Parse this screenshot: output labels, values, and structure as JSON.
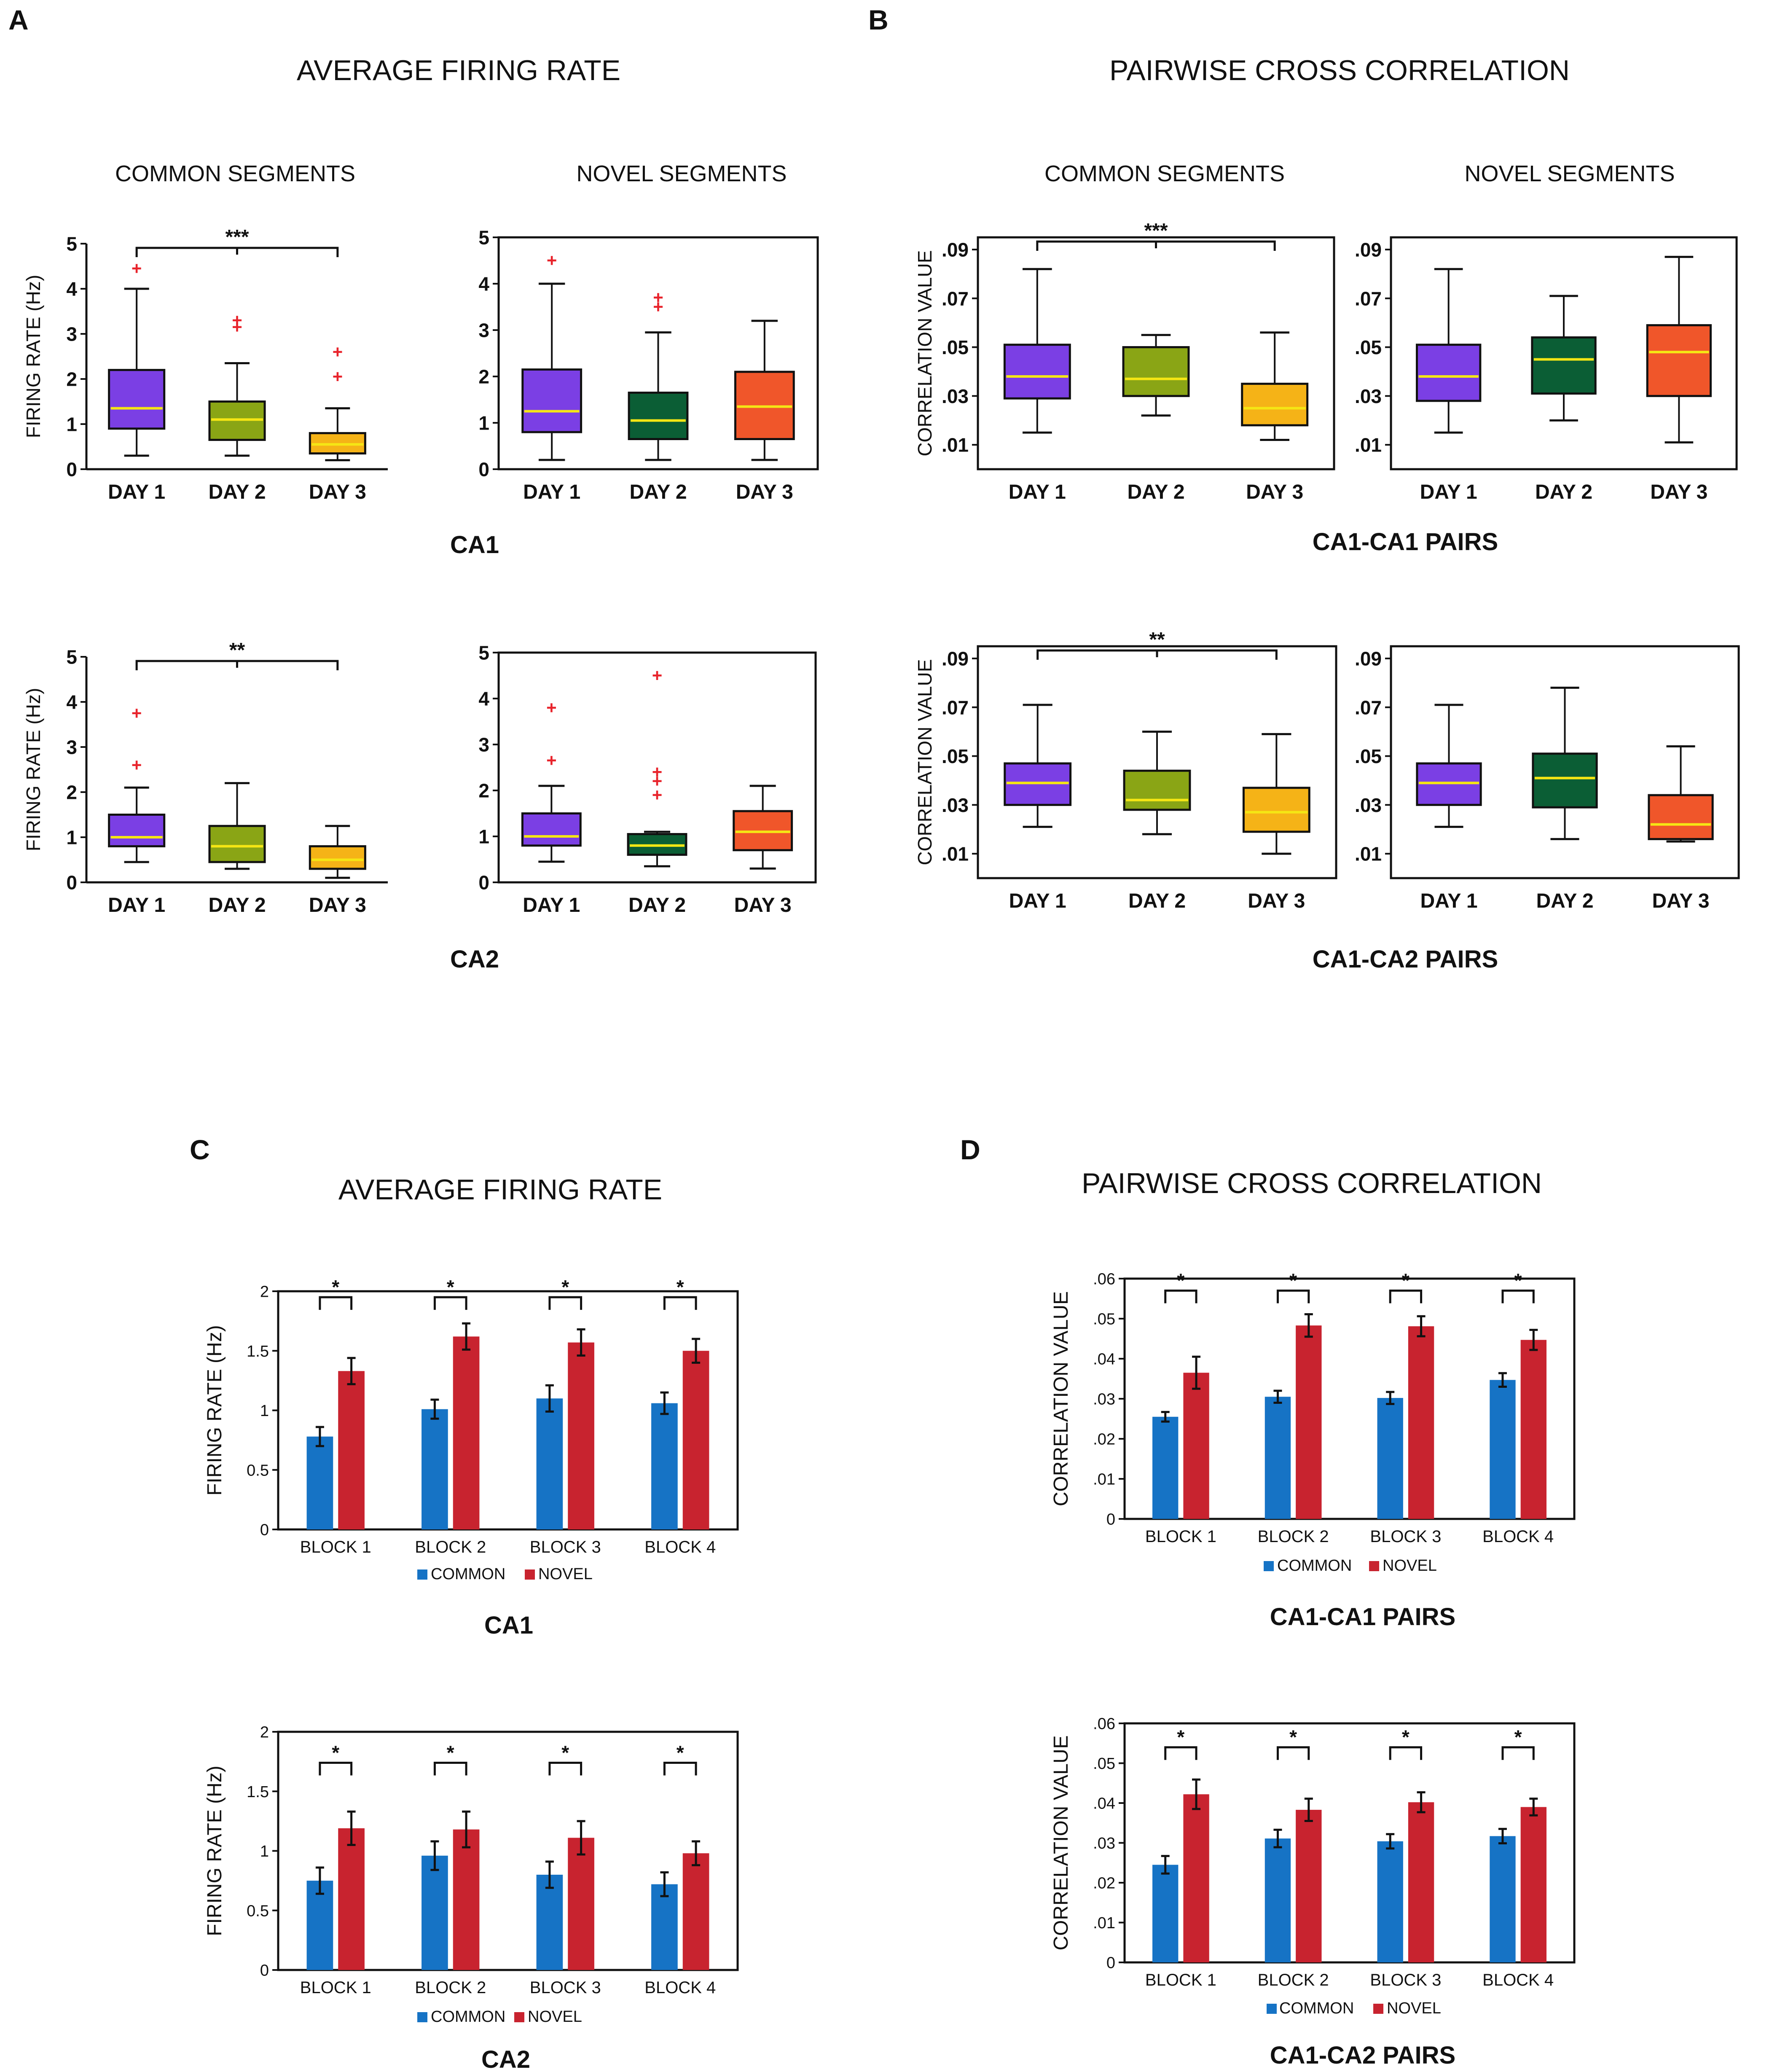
{
  "panels": {
    "A": {
      "letter": "A",
      "title": "AVERAGE FIRING RATE"
    },
    "B": {
      "letter": "B",
      "title": "PAIRWISE CROSS CORRELATION"
    },
    "C": {
      "letter": "C",
      "title": "AVERAGE FIRING RATE"
    },
    "D": {
      "letter": "D",
      "title": "PAIRWISE CROSS CORRELATION"
    }
  },
  "subheads": {
    "common": "COMMON SEGMENTS",
    "novel": "NOVEL SEGMENTS"
  },
  "region_labels": {
    "ca1": "CA1",
    "ca2": "CA2",
    "ca1_ca1": "CA1-CA1 PAIRS",
    "ca1_ca2": "CA1-CA2 PAIRS"
  },
  "legend": {
    "common": "COMMON",
    "novel": "NOVEL"
  },
  "colors": {
    "purple": "#7b3fe4",
    "olive": "#8aa515",
    "gold": "#f5b317",
    "green": "#0b5e35",
    "orange": "#f0562a",
    "median": "#f5e614",
    "outlier": "#e8232b",
    "common_bar": "#1673c5",
    "novel_bar": "#c8232f"
  },
  "chart_data": [
    {
      "id": "A-ca1-common",
      "type": "box",
      "ylabel": "FIRING RATE (Hz)",
      "ylim": [
        0,
        5
      ],
      "yticks": [
        0,
        1,
        2,
        3,
        4,
        5
      ],
      "tick_labels": [
        "0",
        "1",
        "2",
        "3",
        "4",
        "5"
      ],
      "categories": [
        "DAY 1",
        "DAY 2",
        "DAY 3"
      ],
      "boxes": [
        {
          "min": 0.3,
          "q1": 0.9,
          "median": 1.35,
          "q3": 2.2,
          "max": 4.0,
          "outliers": [
            4.45
          ],
          "color": "purple"
        },
        {
          "min": 0.3,
          "q1": 0.65,
          "median": 1.1,
          "q3": 1.5,
          "max": 2.35,
          "outliers": [
            3.15,
            3.3
          ],
          "color": "olive"
        },
        {
          "min": 0.2,
          "q1": 0.35,
          "median": 0.55,
          "q3": 0.8,
          "max": 1.35,
          "outliers": [
            2.05,
            2.6
          ],
          "color": "gold"
        }
      ],
      "significance": {
        "from": 0,
        "to": 2,
        "label": "***"
      }
    },
    {
      "id": "A-ca1-novel",
      "type": "box",
      "ylabel": "",
      "ylim": [
        0,
        5
      ],
      "yticks": [
        0,
        1,
        2,
        3,
        4,
        5
      ],
      "tick_labels": [
        "0",
        "1",
        "2",
        "3",
        "4",
        "5"
      ],
      "categories": [
        "DAY 1",
        "DAY 2",
        "DAY 3"
      ],
      "boxes": [
        {
          "min": 0.2,
          "q1": 0.8,
          "median": 1.25,
          "q3": 2.15,
          "max": 4.0,
          "outliers": [
            4.5
          ],
          "color": "purple"
        },
        {
          "min": 0.2,
          "q1": 0.65,
          "median": 1.05,
          "q3": 1.65,
          "max": 2.95,
          "outliers": [
            3.5,
            3.7
          ],
          "color": "green"
        },
        {
          "min": 0.2,
          "q1": 0.65,
          "median": 1.35,
          "q3": 2.1,
          "max": 3.2,
          "outliers": [],
          "color": "orange"
        }
      ]
    },
    {
      "id": "A-ca2-common",
      "type": "box",
      "ylabel": "FIRING RATE (Hz)",
      "ylim": [
        0,
        5
      ],
      "yticks": [
        0,
        1,
        2,
        3,
        4,
        5
      ],
      "tick_labels": [
        "0",
        "1",
        "2",
        "3",
        "4",
        "5"
      ],
      "categories": [
        "DAY 1",
        "DAY 2",
        "DAY 3"
      ],
      "boxes": [
        {
          "min": 0.45,
          "q1": 0.8,
          "median": 1.0,
          "q3": 1.5,
          "max": 2.1,
          "outliers": [
            2.6,
            3.75
          ],
          "color": "purple"
        },
        {
          "min": 0.3,
          "q1": 0.45,
          "median": 0.8,
          "q3": 1.25,
          "max": 2.2,
          "outliers": [],
          "color": "olive"
        },
        {
          "min": 0.1,
          "q1": 0.3,
          "median": 0.5,
          "q3": 0.8,
          "max": 1.25,
          "outliers": [],
          "color": "gold"
        }
      ],
      "significance": {
        "from": 0,
        "to": 2,
        "label": "**"
      }
    },
    {
      "id": "A-ca2-novel",
      "type": "box",
      "ylabel": "",
      "ylim": [
        0,
        5
      ],
      "yticks": [
        0,
        1,
        2,
        3,
        4,
        5
      ],
      "tick_labels": [
        "0",
        "1",
        "2",
        "3",
        "4",
        "5"
      ],
      "categories": [
        "DAY 1",
        "DAY 2",
        "DAY 3"
      ],
      "boxes": [
        {
          "min": 0.45,
          "q1": 0.8,
          "median": 1.0,
          "q3": 1.5,
          "max": 2.1,
          "outliers": [
            2.65,
            3.8
          ],
          "color": "purple"
        },
        {
          "min": 0.35,
          "q1": 0.6,
          "median": 0.8,
          "q3": 1.05,
          "max": 1.1,
          "outliers": [
            1.9,
            2.2,
            2.4,
            4.5
          ],
          "color": "green"
        },
        {
          "min": 0.3,
          "q1": 0.7,
          "median": 1.1,
          "q3": 1.55,
          "max": 2.1,
          "outliers": [],
          "color": "orange"
        }
      ]
    },
    {
      "id": "B-ca1-common",
      "type": "box",
      "ylabel": "CORRELATION VALUE",
      "ylim": [
        0.0,
        0.095
      ],
      "yticks": [
        0.01,
        0.03,
        0.05,
        0.07,
        0.09
      ],
      "tick_labels": [
        ".01",
        ".03",
        ".05",
        ".07",
        ".09"
      ],
      "categories": [
        "DAY 1",
        "DAY 2",
        "DAY 3"
      ],
      "boxes": [
        {
          "min": 0.015,
          "q1": 0.029,
          "median": 0.038,
          "q3": 0.051,
          "max": 0.082,
          "outliers": [],
          "color": "purple"
        },
        {
          "min": 0.022,
          "q1": 0.03,
          "median": 0.037,
          "q3": 0.05,
          "max": 0.055,
          "outliers": [],
          "color": "olive"
        },
        {
          "min": 0.012,
          "q1": 0.018,
          "median": 0.025,
          "q3": 0.035,
          "max": 0.056,
          "outliers": [],
          "color": "gold"
        }
      ],
      "significance": {
        "from": 0,
        "to": 2,
        "label": "***"
      }
    },
    {
      "id": "B-ca1-novel",
      "type": "box",
      "ylabel": "",
      "ylim": [
        0.0,
        0.095
      ],
      "yticks": [
        0.01,
        0.03,
        0.05,
        0.07,
        0.09
      ],
      "tick_labels": [
        ".01",
        ".03",
        ".05",
        ".07",
        ".09"
      ],
      "categories": [
        "DAY 1",
        "DAY 2",
        "DAY 3"
      ],
      "boxes": [
        {
          "min": 0.015,
          "q1": 0.028,
          "median": 0.038,
          "q3": 0.051,
          "max": 0.082,
          "outliers": [],
          "color": "purple"
        },
        {
          "min": 0.02,
          "q1": 0.031,
          "median": 0.045,
          "q3": 0.054,
          "max": 0.071,
          "outliers": [],
          "color": "green"
        },
        {
          "min": 0.011,
          "q1": 0.03,
          "median": 0.048,
          "q3": 0.059,
          "max": 0.087,
          "outliers": [],
          "color": "orange"
        }
      ]
    },
    {
      "id": "B-ca2-common",
      "type": "box",
      "ylabel": "CORRELATION VALUE",
      "ylim": [
        0.0,
        0.095
      ],
      "yticks": [
        0.01,
        0.03,
        0.05,
        0.07,
        0.09
      ],
      "tick_labels": [
        ".01",
        ".03",
        ".05",
        ".07",
        ".09"
      ],
      "categories": [
        "DAY 1",
        "DAY 2",
        "DAY 3"
      ],
      "boxes": [
        {
          "min": 0.021,
          "q1": 0.03,
          "median": 0.039,
          "q3": 0.047,
          "max": 0.071,
          "outliers": [],
          "color": "purple"
        },
        {
          "min": 0.018,
          "q1": 0.028,
          "median": 0.032,
          "q3": 0.044,
          "max": 0.06,
          "outliers": [],
          "color": "olive"
        },
        {
          "min": 0.01,
          "q1": 0.019,
          "median": 0.027,
          "q3": 0.037,
          "max": 0.059,
          "outliers": [],
          "color": "gold"
        }
      ],
      "significance": {
        "from": 0,
        "to": 2,
        "label": "**"
      }
    },
    {
      "id": "B-ca2-novel",
      "type": "box",
      "ylabel": "",
      "ylim": [
        0.0,
        0.095
      ],
      "yticks": [
        0.01,
        0.03,
        0.05,
        0.07,
        0.09
      ],
      "tick_labels": [
        ".01",
        ".03",
        ".05",
        ".07",
        ".09"
      ],
      "categories": [
        "DAY 1",
        "DAY 2",
        "DAY 3"
      ],
      "boxes": [
        {
          "min": 0.021,
          "q1": 0.03,
          "median": 0.039,
          "q3": 0.047,
          "max": 0.071,
          "outliers": [],
          "color": "purple"
        },
        {
          "min": 0.016,
          "q1": 0.029,
          "median": 0.041,
          "q3": 0.051,
          "max": 0.078,
          "outliers": [],
          "color": "green"
        },
        {
          "min": 0.015,
          "q1": 0.016,
          "median": 0.022,
          "q3": 0.034,
          "max": 0.054,
          "outliers": [],
          "color": "orange"
        }
      ]
    },
    {
      "id": "C-ca1",
      "type": "bar",
      "ylabel": "FIRING RATE (Hz)",
      "ylim": [
        0,
        2
      ],
      "yticks": [
        0,
        0.5,
        1,
        1.5,
        2
      ],
      "tick_labels": [
        "0",
        "0.5",
        "1",
        "1.5",
        "2"
      ],
      "categories": [
        "BLOCK 1",
        "BLOCK 2",
        "BLOCK 3",
        "BLOCK 4"
      ],
      "series": [
        {
          "name": "COMMON",
          "values": [
            0.78,
            1.01,
            1.1,
            1.06
          ],
          "errors": [
            0.08,
            0.08,
            0.11,
            0.09
          ]
        },
        {
          "name": "NOVEL",
          "values": [
            1.33,
            1.62,
            1.57,
            1.5
          ],
          "errors": [
            0.11,
            0.11,
            0.11,
            0.1
          ]
        }
      ],
      "significance": [
        "*",
        "*",
        "*",
        "*"
      ],
      "sig_level": 1.95
    },
    {
      "id": "C-ca2",
      "type": "bar",
      "ylabel": "FIRING RATE (Hz)",
      "ylim": [
        0,
        2
      ],
      "yticks": [
        0,
        0.5,
        1,
        1.5,
        2
      ],
      "tick_labels": [
        "0",
        "0.5",
        "1",
        "1.5",
        "2"
      ],
      "categories": [
        "BLOCK 1",
        "BLOCK 2",
        "BLOCK 3",
        "BLOCK 4"
      ],
      "series": [
        {
          "name": "COMMON",
          "values": [
            0.75,
            0.96,
            0.8,
            0.72
          ],
          "errors": [
            0.11,
            0.12,
            0.11,
            0.1
          ]
        },
        {
          "name": "NOVEL",
          "values": [
            1.19,
            1.18,
            1.11,
            0.98
          ],
          "errors": [
            0.14,
            0.15,
            0.14,
            0.1
          ]
        }
      ],
      "significance": [
        "*",
        "*",
        "*",
        "*"
      ],
      "sig_level": 1.74
    },
    {
      "id": "D-ca1",
      "type": "bar",
      "ylabel": "CORRELATION VALUE",
      "ylim": [
        0,
        0.06
      ],
      "yticks": [
        0,
        0.01,
        0.02,
        0.03,
        0.04,
        0.05,
        0.06
      ],
      "tick_labels": [
        "0",
        ".01",
        ".02",
        ".03",
        ".04",
        ".05",
        ".06"
      ],
      "categories": [
        "BLOCK 1",
        "BLOCK 2",
        "BLOCK 3",
        "BLOCK 4"
      ],
      "series": [
        {
          "name": "COMMON",
          "values": [
            0.0255,
            0.0305,
            0.0302,
            0.0347
          ],
          "errors": [
            0.0012,
            0.0015,
            0.0015,
            0.0017
          ]
        },
        {
          "name": "NOVEL",
          "values": [
            0.0365,
            0.0483,
            0.0481,
            0.0447
          ],
          "errors": [
            0.004,
            0.0028,
            0.0025,
            0.0025
          ]
        }
      ],
      "significance": [
        "*",
        "*",
        "*",
        "*"
      ],
      "sig_level": 0.057
    },
    {
      "id": "D-ca2",
      "type": "bar",
      "ylabel": "CORRELATION VALUE",
      "ylim": [
        0,
        0.06
      ],
      "yticks": [
        0,
        0.01,
        0.02,
        0.03,
        0.04,
        0.05,
        0.06
      ],
      "tick_labels": [
        "0",
        ".01",
        ".02",
        ".03",
        ".04",
        ".05",
        ".06"
      ],
      "categories": [
        "BLOCK 1",
        "BLOCK 2",
        "BLOCK 3",
        "BLOCK 4"
      ],
      "series": [
        {
          "name": "COMMON",
          "values": [
            0.0245,
            0.0311,
            0.0304,
            0.0317
          ],
          "errors": [
            0.0022,
            0.0022,
            0.0018,
            0.0018
          ]
        },
        {
          "name": "NOVEL",
          "values": [
            0.0422,
            0.0383,
            0.0402,
            0.039
          ],
          "errors": [
            0.0037,
            0.0028,
            0.0025,
            0.0021
          ]
        }
      ],
      "significance": [
        "*",
        "*",
        "*",
        "*"
      ],
      "sig_level": 0.054
    }
  ]
}
